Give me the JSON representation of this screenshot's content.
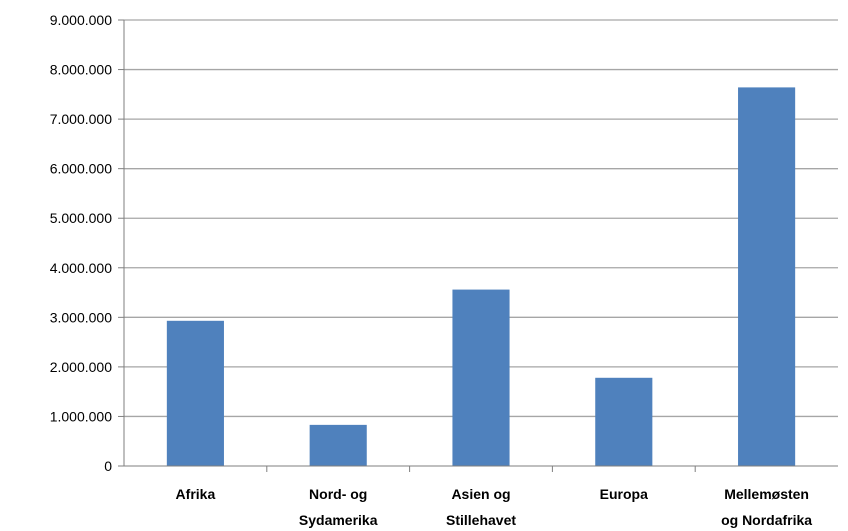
{
  "chart_data": {
    "type": "bar",
    "title": "",
    "xlabel": "",
    "ylabel": "",
    "categories": [
      [
        "Afrika"
      ],
      [
        "Nord- og",
        "Sydamerika"
      ],
      [
        "Asien og",
        "Stillehavet"
      ],
      [
        "Europa"
      ],
      [
        "Mellemøsten",
        "og Nordafrika"
      ]
    ],
    "values": [
      2930000,
      830000,
      3560000,
      1780000,
      7640000
    ],
    "ylim": [
      0,
      9000000
    ],
    "yticks": [
      0,
      1000000,
      2000000,
      3000000,
      4000000,
      5000000,
      6000000,
      7000000,
      8000000,
      9000000
    ],
    "ytick_labels": [
      "0",
      "1.000.000",
      "2.000.000",
      "3.000.000",
      "4.000.000",
      "5.000.000",
      "6.000.000",
      "7.000.000",
      "8.000.000",
      "9.000.000"
    ],
    "grid": true,
    "legend": "none",
    "bar_color": "#4f81bd",
    "grid_color": "#a6a6a6",
    "axis_color": "#7f7f7f"
  }
}
